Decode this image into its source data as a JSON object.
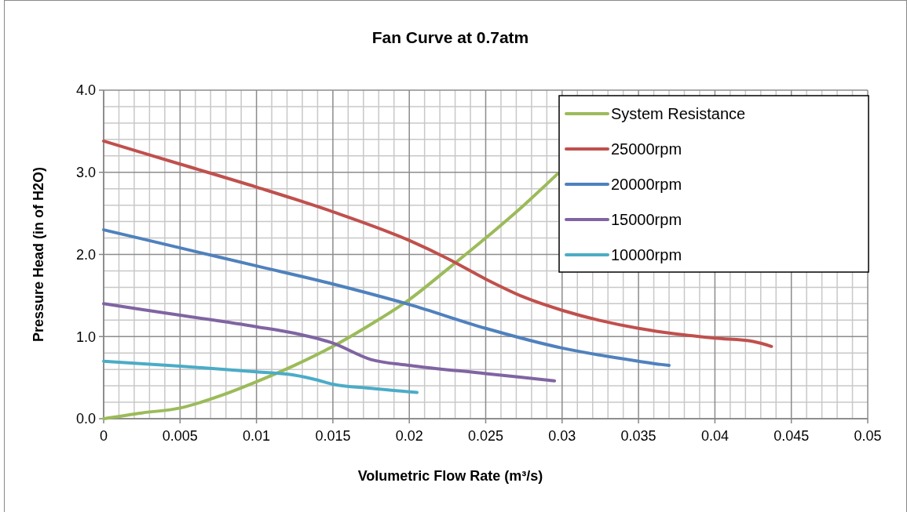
{
  "chart_data": {
    "type": "line",
    "title": "Fan Curve at 0.7atm",
    "xlabel": "Volumetric Flow Rate (m³/s)",
    "ylabel": "Pressure Head (in of H2O)",
    "xlim": [
      0,
      0.05
    ],
    "xticks": [
      0,
      0.005,
      0.01,
      0.015,
      0.02,
      0.025,
      0.03,
      0.035,
      0.04,
      0.045,
      0.05
    ],
    "ylim": [
      0,
      4
    ],
    "yticks": [
      {
        "value": 0,
        "label": "0.0"
      },
      {
        "value": 1,
        "label": "1.0"
      },
      {
        "value": 2,
        "label": "2.0"
      },
      {
        "value": 3,
        "label": "3.0"
      },
      {
        "value": 4,
        "label": "4.0"
      }
    ],
    "grid": true,
    "legend": "top right",
    "marker": "none",
    "line_style": "solid",
    "series": [
      {
        "name": "System Resistance",
        "color": "#9bbb59",
        "x": [
          0,
          0.0025,
          0.005,
          0.0075,
          0.01,
          0.0125,
          0.015,
          0.0175,
          0.02,
          0.0225,
          0.025,
          0.0275,
          0.0297
        ],
        "values": [
          0,
          0.07,
          0.13,
          0.27,
          0.45,
          0.65,
          0.88,
          1.15,
          1.45,
          1.82,
          2.2,
          2.6,
          2.98
        ]
      },
      {
        "name": "25000rpm",
        "color": "#c0504d",
        "x": [
          0,
          0.005,
          0.01,
          0.015,
          0.02,
          0.0225,
          0.025,
          0.0275,
          0.03,
          0.035,
          0.0375,
          0.04,
          0.0425,
          0.0437
        ],
        "values": [
          3.38,
          3.1,
          2.82,
          2.52,
          2.17,
          1.95,
          1.7,
          1.48,
          1.32,
          1.1,
          1.03,
          0.98,
          0.94,
          0.88
        ]
      },
      {
        "name": "20000rpm",
        "color": "#4f81bd",
        "x": [
          0,
          0.005,
          0.01,
          0.015,
          0.02,
          0.025,
          0.03,
          0.035,
          0.0365,
          0.037
        ],
        "values": [
          2.3,
          2.08,
          1.86,
          1.64,
          1.39,
          1.1,
          0.86,
          0.7,
          0.66,
          0.65
        ]
      },
      {
        "name": "15000rpm",
        "color": "#8064a2",
        "x": [
          0,
          0.005,
          0.01,
          0.0125,
          0.015,
          0.0175,
          0.02,
          0.025,
          0.0295
        ],
        "values": [
          1.4,
          1.26,
          1.12,
          1.04,
          0.92,
          0.72,
          0.65,
          0.55,
          0.46
        ]
      },
      {
        "name": "10000rpm",
        "color": "#4bacc6",
        "x": [
          0,
          0.005,
          0.01,
          0.0125,
          0.014,
          0.015,
          0.0175,
          0.0205
        ],
        "values": [
          0.7,
          0.64,
          0.57,
          0.53,
          0.47,
          0.42,
          0.37,
          0.32
        ]
      }
    ]
  }
}
